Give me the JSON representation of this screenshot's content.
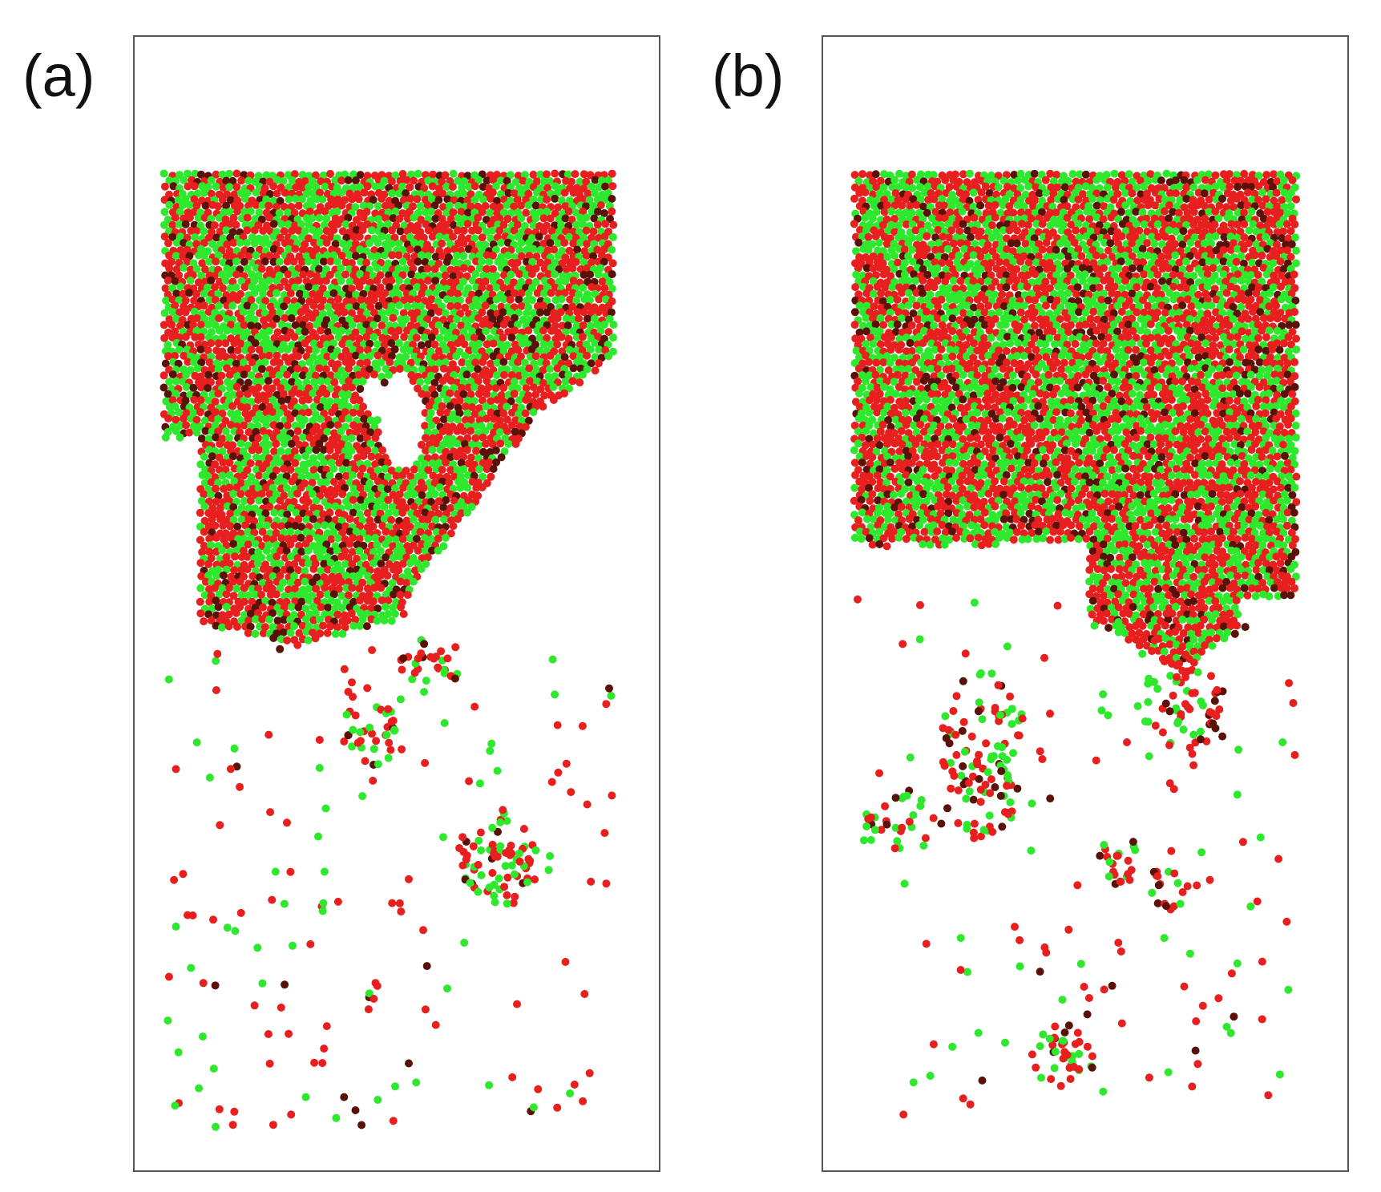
{
  "panels": [
    {
      "label": "(a)"
    },
    {
      "label": "(b)"
    }
  ],
  "colors": {
    "atom_red": "#e81f1f",
    "atom_green": "#2ee82e",
    "atom_dark": "#5a1208",
    "frame": "#555555",
    "background": "#ffffff"
  }
}
